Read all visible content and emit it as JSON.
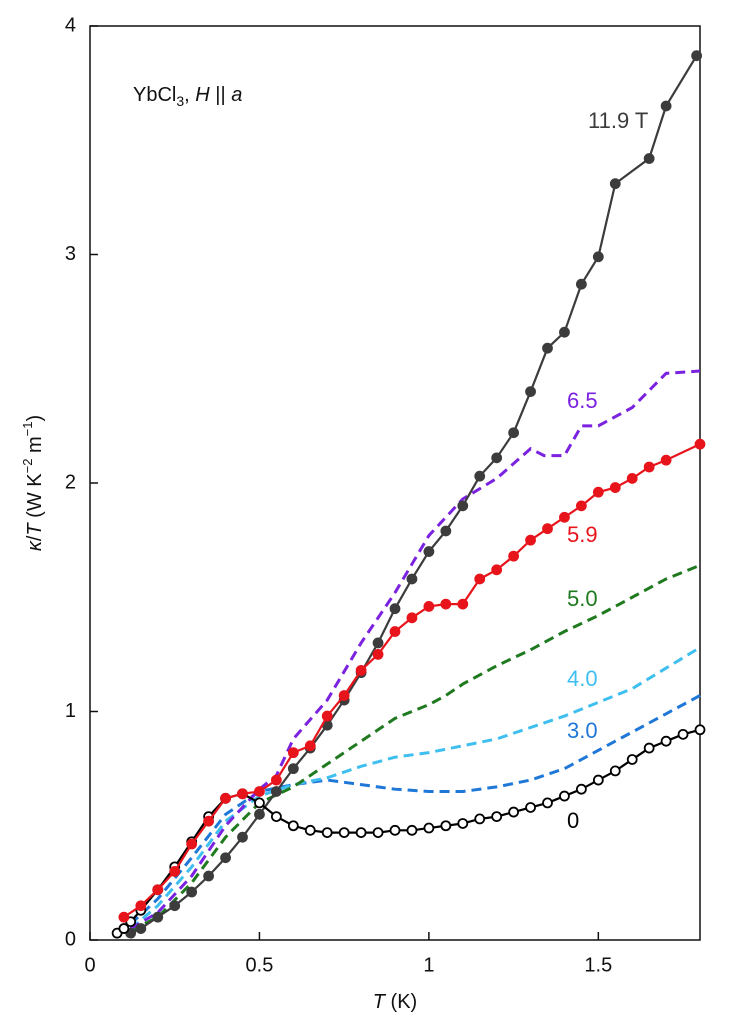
{
  "chart_data": {
    "type": "line",
    "annotation": {
      "parts": [
        "YbCl",
        "3",
        ", ",
        "H",
        " || ",
        "a"
      ]
    },
    "x_label": {
      "parts": [
        "T",
        " (K)"
      ]
    },
    "y_label": {
      "parts": [
        "κ",
        "/",
        "T",
        " (W K",
        "−2",
        " m",
        "−1",
        ")"
      ]
    },
    "xlim": [
      0,
      1.8
    ],
    "xticks": [
      0,
      0.5,
      1,
      1.5
    ],
    "ylim": [
      0,
      4
    ],
    "yticks": [
      0,
      1,
      2,
      3,
      4
    ],
    "series": [
      {
        "name": "11.9 T",
        "color": "#3c3c3c",
        "line_style": "solid",
        "marker": "filled",
        "x": [
          0.12,
          0.15,
          0.2,
          0.25,
          0.3,
          0.35,
          0.4,
          0.45,
          0.5,
          0.55,
          0.6,
          0.65,
          0.7,
          0.75,
          0.8,
          0.85,
          0.9,
          0.95,
          1.0,
          1.05,
          1.1,
          1.15,
          1.2,
          1.25,
          1.3,
          1.35,
          1.4,
          1.45,
          1.5,
          1.55,
          1.65,
          1.7,
          1.79
        ],
        "values": [
          0.03,
          0.05,
          0.1,
          0.15,
          0.21,
          0.28,
          0.36,
          0.45,
          0.55,
          0.65,
          0.75,
          0.84,
          0.94,
          1.05,
          1.17,
          1.3,
          1.45,
          1.58,
          1.7,
          1.79,
          1.9,
          2.03,
          2.11,
          2.22,
          2.4,
          2.59,
          2.66,
          2.87,
          2.99,
          3.31,
          3.42,
          3.65,
          3.87
        ]
      },
      {
        "name": "6.5",
        "color": "#7a22e0",
        "line_style": "dashed",
        "marker": "none",
        "x": [
          0.12,
          0.2,
          0.3,
          0.4,
          0.5,
          0.55,
          0.6,
          0.7,
          0.8,
          0.9,
          1.0,
          1.1,
          1.2,
          1.3,
          1.34,
          1.4,
          1.45,
          1.5,
          1.6,
          1.7,
          1.8
        ],
        "values": [
          0.05,
          0.12,
          0.28,
          0.5,
          0.66,
          0.72,
          0.88,
          1.05,
          1.3,
          1.52,
          1.77,
          1.93,
          2.02,
          2.15,
          2.12,
          2.12,
          2.25,
          2.25,
          2.33,
          2.48,
          2.49
        ]
      },
      {
        "name": "5.9",
        "color": "#e8141c",
        "line_style": "solid",
        "marker": "filled",
        "x": [
          0.1,
          0.15,
          0.2,
          0.25,
          0.3,
          0.35,
          0.4,
          0.45,
          0.5,
          0.55,
          0.6,
          0.65,
          0.7,
          0.75,
          0.8,
          0.85,
          0.9,
          0.95,
          1.0,
          1.05,
          1.1,
          1.15,
          1.2,
          1.25,
          1.3,
          1.35,
          1.4,
          1.45,
          1.5,
          1.55,
          1.6,
          1.65,
          1.7,
          1.8
        ],
        "values": [
          0.1,
          0.15,
          0.22,
          0.3,
          0.42,
          0.52,
          0.62,
          0.64,
          0.65,
          0.7,
          0.82,
          0.85,
          0.98,
          1.07,
          1.18,
          1.25,
          1.35,
          1.41,
          1.46,
          1.47,
          1.47,
          1.58,
          1.62,
          1.68,
          1.75,
          1.8,
          1.85,
          1.9,
          1.96,
          1.98,
          2.02,
          2.07,
          2.1,
          2.17
        ]
      },
      {
        "name": "5.0",
        "color": "#1f7a1f",
        "line_style": "dashed",
        "marker": "none",
        "x": [
          0.12,
          0.2,
          0.3,
          0.4,
          0.5,
          0.6,
          0.7,
          0.8,
          0.9,
          1.0,
          1.05,
          1.1,
          1.15,
          1.2,
          1.3,
          1.4,
          1.5,
          1.6,
          1.7,
          1.8
        ],
        "values": [
          0.04,
          0.1,
          0.25,
          0.45,
          0.6,
          0.67,
          0.77,
          0.87,
          0.97,
          1.03,
          1.07,
          1.12,
          1.16,
          1.2,
          1.27,
          1.35,
          1.42,
          1.5,
          1.58,
          1.64
        ]
      },
      {
        "name": "4.0",
        "color": "#3fbfef",
        "line_style": "dashed",
        "marker": "none",
        "x": [
          0.12,
          0.2,
          0.3,
          0.4,
          0.5,
          0.6,
          0.7,
          0.8,
          0.9,
          1.0,
          1.1,
          1.2,
          1.3,
          1.4,
          1.5,
          1.6,
          1.7,
          1.8
        ],
        "values": [
          0.05,
          0.15,
          0.32,
          0.52,
          0.63,
          0.68,
          0.71,
          0.76,
          0.8,
          0.82,
          0.85,
          0.88,
          0.93,
          0.98,
          1.04,
          1.1,
          1.19,
          1.28
        ]
      },
      {
        "name": "3.0",
        "color": "#1f78d8",
        "line_style": "dashed",
        "marker": "none",
        "x": [
          0.12,
          0.2,
          0.3,
          0.4,
          0.5,
          0.6,
          0.7,
          0.8,
          0.9,
          1.0,
          1.1,
          1.2,
          1.3,
          1.4,
          1.5,
          1.6,
          1.7,
          1.8
        ],
        "values": [
          0.07,
          0.18,
          0.36,
          0.55,
          0.65,
          0.68,
          0.7,
          0.68,
          0.66,
          0.65,
          0.65,
          0.67,
          0.7,
          0.75,
          0.83,
          0.91,
          0.99,
          1.07
        ]
      },
      {
        "name": "0",
        "color": "#000000",
        "line_style": "solid",
        "marker": "open",
        "x": [
          0.08,
          0.1,
          0.12,
          0.15,
          0.2,
          0.25,
          0.3,
          0.35,
          0.4,
          0.45,
          0.5,
          0.55,
          0.6,
          0.65,
          0.7,
          0.75,
          0.8,
          0.85,
          0.9,
          0.95,
          1.0,
          1.05,
          1.1,
          1.15,
          1.2,
          1.25,
          1.3,
          1.35,
          1.4,
          1.45,
          1.5,
          1.55,
          1.6,
          1.65,
          1.7,
          1.75,
          1.8
        ],
        "values": [
          0.03,
          0.05,
          0.08,
          0.13,
          0.22,
          0.32,
          0.43,
          0.54,
          0.62,
          0.64,
          0.6,
          0.54,
          0.5,
          0.48,
          0.47,
          0.47,
          0.47,
          0.47,
          0.48,
          0.48,
          0.49,
          0.5,
          0.51,
          0.53,
          0.54,
          0.56,
          0.58,
          0.6,
          0.63,
          0.66,
          0.7,
          0.74,
          0.79,
          0.84,
          0.87,
          0.9,
          0.92
        ]
      }
    ]
  }
}
